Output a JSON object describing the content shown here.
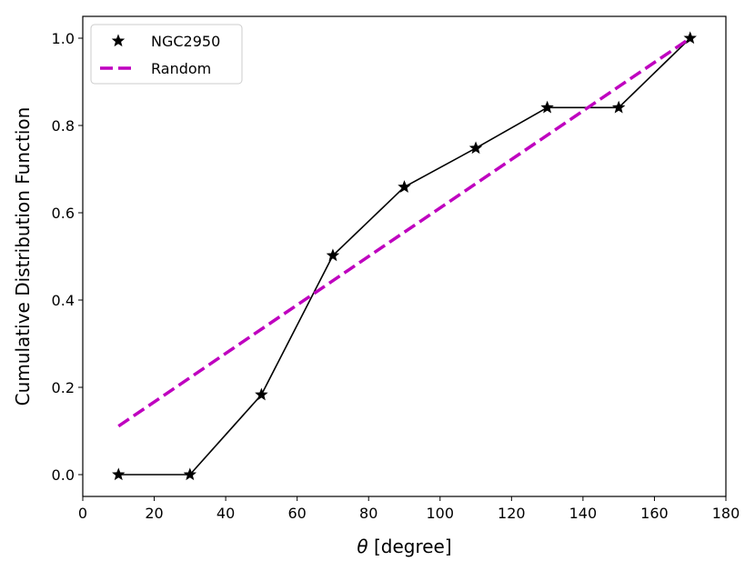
{
  "chart_data": {
    "type": "line",
    "title": "",
    "xlabel_symbol": "θ",
    "xlabel_rest": " [degree]",
    "ylabel": "Cumulative Distribution Function",
    "xlim": [
      0,
      180
    ],
    "ylim": [
      -0.05,
      1.05
    ],
    "xticks": [
      0,
      20,
      40,
      60,
      80,
      100,
      120,
      140,
      160,
      180
    ],
    "yticks": [
      0.0,
      0.2,
      0.4,
      0.6,
      0.8,
      1.0
    ],
    "xtick_labels": [
      "0",
      "20",
      "40",
      "60",
      "80",
      "100",
      "120",
      "140",
      "160",
      "180"
    ],
    "ytick_labels": [
      "0.0",
      "0.2",
      "0.4",
      "0.6",
      "0.8",
      "1.0"
    ],
    "grid": false,
    "legend_position": "top-left",
    "series": [
      {
        "name": "NGC2950",
        "style": "solid-with-star-markers",
        "color": "#000000",
        "x": [
          10,
          30,
          50,
          70,
          90,
          110,
          130,
          150,
          170
        ],
        "y": [
          0.0,
          0.0,
          0.183,
          0.502,
          0.659,
          0.748,
          0.841,
          0.841,
          1.0
        ]
      },
      {
        "name": "Random",
        "style": "dashed",
        "color": "#bf00bf",
        "x": [
          10,
          170
        ],
        "y": [
          0.111,
          1.0
        ]
      }
    ]
  }
}
